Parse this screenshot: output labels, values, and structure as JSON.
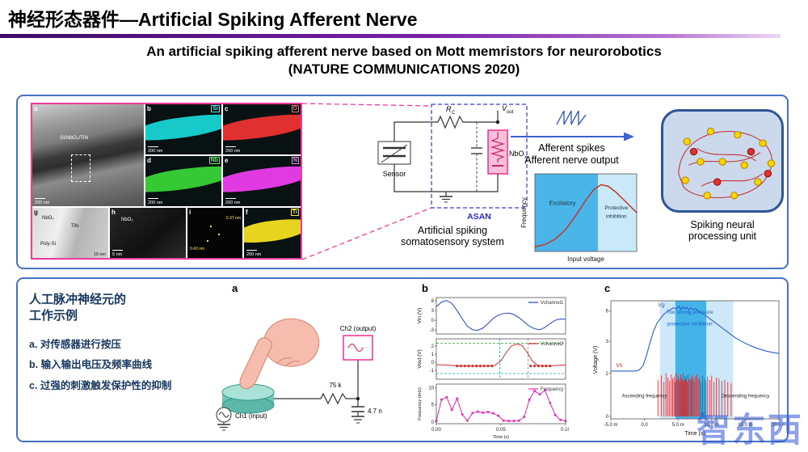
{
  "slide": {
    "title": "神经形态器件—Artificial Spiking Afferent Nerve",
    "subtitle_line1": "An artificial spiking afferent nerve based on Mott memristors for neurorobotics",
    "subtitle_line2": "(NATURE COMMUNICATIONS 2020)"
  },
  "top_panel": {
    "micrograph": {
      "a_letter": "a",
      "a_layer": "Si/NbO₂/TiN",
      "a_scale": "200 nm",
      "b_letter": "b",
      "b_el": "Si",
      "c_letter": "c",
      "c_el": "O",
      "d_letter": "d",
      "d_el": "Nb",
      "e_letter": "e",
      "e_el": "N",
      "f_letter": "f",
      "f_el": "Ti",
      "g_letter": "g",
      "g_l1": "NbO₂",
      "g_l2": "TiN",
      "g_l3": "Poly-Si",
      "g_scale": "10 nm",
      "h_letter": "h",
      "h_l1": "NbO₂",
      "h_scale": "5 nm",
      "i_letter": "i",
      "i_d1": "0.37 nm",
      "i_d2": "0.43 nm",
      "eds_scale": "200 nm",
      "elements": [
        {
          "symbol": "Si",
          "color": "#17c9c9"
        },
        {
          "symbol": "O",
          "color": "#e03030"
        },
        {
          "symbol": "Nb",
          "color": "#35c935"
        },
        {
          "symbol": "N",
          "color": "#e23ae2"
        },
        {
          "symbol": "Ti",
          "color": "#e6d41f"
        }
      ]
    },
    "circuit": {
      "sensor": "Sensor",
      "r": "R",
      "r_sub": "C",
      "v": "V",
      "v_sub": "out",
      "dev": "NbO",
      "dev_sub": "x",
      "asan": "ASAN",
      "caption": "Artificial spiking somatosensory system"
    },
    "afferent": {
      "line1": "Afferent spikes",
      "line2": "Afferent nerve output"
    },
    "snn_caption": "Spiking neural processing unit"
  },
  "bottom_panel": {
    "notes": {
      "heading_line1": "人工脉冲神经元的",
      "heading_line2": "工作示例",
      "items": [
        "a. 对传感器进行按压",
        "b. 输入输出电压及频率曲线",
        "c. 过强的刺激触发保护性的抑制"
      ]
    },
    "panel_a": {
      "label": "a",
      "ch2": "Ch2 (output)",
      "resistor": "75 k",
      "capacitor": "4.7 n",
      "ch1": "Ch1 (input)"
    },
    "panel_b_label": "b",
    "panel_c_label": "c"
  },
  "watermark": "智东西",
  "chart_data": [
    {
      "id": "freq-voltage",
      "type": "line",
      "xlabel": "Input voltage",
      "ylabel": "Frequency",
      "xlim": [
        0,
        1
      ],
      "ylim": [
        0,
        1
      ],
      "regions": [
        {
          "x0": 0,
          "x1": 0.62,
          "color": "#4ab5e8"
        },
        {
          "x0": 0.62,
          "x1": 1,
          "color": "#c9e9f8"
        }
      ],
      "annotations": [
        {
          "text": "Excitatory",
          "rx": 0.27,
          "ry": 0.4,
          "size": 7.5,
          "color": "#103040"
        },
        {
          "text": "Protective",
          "rx": 0.8,
          "ry": 0.46,
          "size": 6.5,
          "color": "#103040"
        },
        {
          "text": "inhibition",
          "rx": 0.8,
          "ry": 0.57,
          "size": 6.5,
          "color": "#103040"
        }
      ],
      "series": [
        {
          "name": "afferent-response",
          "color": "#c0392b",
          "width": 1.5,
          "x": [
            0,
            0.1,
            0.2,
            0.3,
            0.4,
            0.5,
            0.58,
            0.65,
            0.72,
            0.8,
            0.9,
            1
          ],
          "y": [
            0.06,
            0.09,
            0.16,
            0.28,
            0.46,
            0.66,
            0.8,
            0.86,
            0.84,
            0.76,
            0.63,
            0.5
          ]
        }
      ]
    },
    {
      "id": "b-vin",
      "type": "line",
      "ylabel": "Vin (V)",
      "xlim": [
        0,
        0.1
      ],
      "ylim": [
        -4.2,
        7
      ],
      "yticks": [
        [
          6,
          "6"
        ],
        [
          3,
          "3"
        ],
        [
          0,
          "0"
        ],
        [
          -3,
          "-3"
        ]
      ],
      "legend": [
        {
          "label": "Vchannel1",
          "color": "#2040cc"
        }
      ],
      "series": [
        {
          "name": "Vchannel1",
          "color": "#2040cc",
          "width": 1,
          "x": [
            0,
            0.004,
            0.008,
            0.012,
            0.016,
            0.02,
            0.024,
            0.028,
            0.032,
            0.036,
            0.04,
            0.044,
            0.048,
            0.052,
            0.056,
            0.06,
            0.064,
            0.068,
            0.072,
            0.076,
            0.08,
            0.084,
            0.088,
            0.092,
            0.096,
            0.1
          ],
          "y": [
            4.2,
            5.6,
            6.1,
            5.2,
            3,
            0.5,
            -1.8,
            -2.9,
            -3.1,
            -2.4,
            -1,
            0.6,
            1.6,
            2.1,
            2.2,
            1.8,
            0.8,
            -0.5,
            -1.8,
            -2.6,
            -2.9,
            -2.2,
            -1,
            0,
            0.4,
            0.3
          ]
        }
      ]
    },
    {
      "id": "b-vout",
      "type": "line",
      "ylabel": "Vout (V)",
      "xlim": [
        0,
        0.1
      ],
      "ylim": [
        -2.1,
        2.9
      ],
      "yticks": [
        [
          2,
          "2"
        ],
        [
          1,
          "1"
        ],
        [
          0,
          "0"
        ],
        [
          -1,
          "-1"
        ]
      ],
      "hlines": [
        {
          "y": 2.35,
          "color": "#2ca02c"
        },
        {
          "y": -1.4,
          "color": "#17a2b8"
        }
      ],
      "vlines": [
        {
          "x": 0.049,
          "color": "#17a2b8"
        },
        {
          "x": 0.071,
          "color": "#17a2b8"
        }
      ],
      "legend": [
        {
          "label": "Vchannel2",
          "color": "#d62f2f"
        }
      ],
      "series": [
        {
          "name": "Vchannel2",
          "color": "#d62f2f",
          "width": 1,
          "x": [
            0,
            0.005,
            0.01,
            0.015,
            0.02,
            0.025,
            0.03,
            0.035,
            0.04,
            0.045,
            0.05,
            0.054,
            0.058,
            0.062,
            0.066,
            0.07,
            0.074,
            0.078,
            0.082,
            0.086,
            0.09,
            0.095,
            0.1
          ],
          "y": [
            -0.3,
            -0.32,
            -0.36,
            -0.42,
            -0.46,
            -0.46,
            -0.46,
            -0.46,
            -0.44,
            -0.4,
            0.2,
            1.2,
            2,
            2.25,
            2.1,
            1.3,
            0.2,
            -0.35,
            -0.45,
            -0.46,
            -0.42,
            -0.36,
            -0.32
          ]
        },
        {
          "name": "spike-events",
          "type": "scatter",
          "color": "#d62f2f",
          "x": [
            0.016,
            0.019,
            0.022,
            0.025,
            0.028,
            0.031,
            0.034,
            0.037,
            0.04,
            0.043,
            0.073,
            0.076,
            0.079,
            0.082,
            0.085,
            0.088
          ],
          "y": [
            -0.46,
            -0.46,
            -0.46,
            -0.46,
            -0.46,
            -0.46,
            -0.46,
            -0.46,
            -0.46,
            -0.46,
            -0.46,
            -0.46,
            -0.46,
            -0.46,
            -0.46,
            -0.46
          ]
        }
      ]
    },
    {
      "id": "b-freq",
      "type": "line",
      "ylabel": "Frequency (kHz)",
      "xlabel": "Time (s)",
      "xlim": [
        0,
        0.1
      ],
      "ylim": [
        -0.5,
        11
      ],
      "yticks": [
        [
          10,
          "10"
        ],
        [
          5,
          "5"
        ],
        [
          0,
          "0"
        ]
      ],
      "xticks": [
        [
          0,
          "0.00"
        ],
        [
          0.05,
          "0.05"
        ],
        [
          0.1,
          "0.10"
        ]
      ],
      "legend": [
        {
          "label": "Frequency",
          "color": "#e628b4"
        }
      ],
      "series": [
        {
          "name": "Frequency",
          "color": "#e628b4",
          "width": 1,
          "marker": "square",
          "x": [
            0,
            0.004,
            0.008,
            0.012,
            0.016,
            0.02,
            0.024,
            0.028,
            0.032,
            0.036,
            0.04,
            0.044,
            0.048,
            0.052,
            0.056,
            0.06,
            0.064,
            0.068,
            0.072,
            0.076,
            0.08,
            0.084,
            0.088,
            0.092,
            0.096,
            0.1
          ],
          "y": [
            0.3,
            6.5,
            7.2,
            3.5,
            6.8,
            2.2,
            0.4,
            2.6,
            3,
            2.7,
            2.9,
            2.5,
            1.8,
            0.4,
            0.3,
            0.3,
            0.4,
            1.5,
            6.5,
            9,
            8,
            9.2,
            5.5,
            2,
            0.6,
            0.3
          ]
        }
      ]
    },
    {
      "id": "c-chart",
      "type": "line",
      "ylabel": "Voltage (V)",
      "xlabel": "Time (s)",
      "xlim": [
        -5,
        20
      ],
      "ylim": [
        0,
        7
      ],
      "xticks": [
        [
          -5,
          "-5.0 m"
        ],
        [
          0,
          "0.0"
        ],
        [
          5,
          "5.0 m"
        ],
        [
          10,
          "10.0 m"
        ],
        [
          15,
          "15.0 m"
        ],
        [
          20,
          "20.0 m"
        ]
      ],
      "yticks": [
        [
          6,
          "6",
          0
        ],
        [
          3,
          "3",
          0
        ],
        [
          2,
          "2",
          1
        ],
        [
          0,
          "0",
          1
        ]
      ],
      "regions": [
        {
          "x0": 2.3,
          "x1": 13.2,
          "color": "#cde8f8"
        },
        {
          "x0": 4.6,
          "x1": 9.2,
          "color": "#44b4e8"
        }
      ],
      "annotations": [
        {
          "text": "Vg",
          "rx": 0.3,
          "ry": 0.05,
          "color": "#2a5fd0",
          "italic": true,
          "size": 7
        },
        {
          "text": "Vs",
          "rx": 0.03,
          "ry": 0.56,
          "color": "#e02020",
          "italic": true,
          "size": 7,
          "anchor": "start"
        },
        {
          "text": "Too strong pressure",
          "rx": 0.47,
          "ry": 0.11,
          "color": "#1a5fc8",
          "size": 6.5
        },
        {
          "text": "protective inhibition",
          "rx": 0.47,
          "ry": 0.21,
          "color": "#1a5fc8",
          "size": 6.5
        },
        {
          "text": "Ascending frequency",
          "rx": 0.2,
          "ry": 0.82,
          "color": "#222",
          "size": 6
        },
        {
          "text": "Descending frequency",
          "rx": 0.8,
          "ry": 0.82,
          "color": "#222",
          "size": 6
        }
      ],
      "series": [
        {
          "name": "Vg",
          "color": "#2a5fd0",
          "width": 1.1,
          "ylim": [
            0,
            7
          ],
          "band": [
            0.4,
            1
          ],
          "x": [
            -5,
            -1.5,
            -0.8,
            -0.2,
            0.3,
            0.8,
            1.3,
            1.8,
            2.3,
            2.8,
            3.3,
            3.8,
            4.3,
            4.8,
            5.1,
            5.4,
            5.7,
            6,
            6.3,
            6.6,
            6.9,
            7.2,
            7.6,
            8,
            8.5,
            9,
            9.5,
            10,
            10.6,
            11.2,
            11.8,
            12.4,
            13,
            13.6,
            14.2,
            15,
            16,
            17,
            18,
            19,
            20
          ],
          "y": [
            0.05,
            0.05,
            0.15,
            0.6,
            1.6,
            2.8,
            3.9,
            4.7,
            5.2,
            5.6,
            5.9,
            6.1,
            6.3,
            6.2,
            6.45,
            6.15,
            6.4,
            6.2,
            6.35,
            6.1,
            6.3,
            6.15,
            6.2,
            6,
            5.8,
            5.6,
            5.35,
            5.1,
            4.8,
            4.5,
            4.2,
            3.9,
            3.6,
            3.3,
            3.1,
            2.8,
            2.5,
            2.25,
            2.05,
            1.9,
            1.8
          ]
        },
        {
          "name": "Vs",
          "type": "spikes",
          "color": "#e02020",
          "ylim": [
            0,
            2.3
          ],
          "band": [
            0.02,
            0.44
          ],
          "x": [
            2.0,
            2.5,
            2.9,
            3.2,
            3.5,
            3.75,
            4.0,
            4.2,
            4.4,
            4.55,
            4.7,
            4.85,
            5.0,
            5.12,
            5.25,
            5.38,
            5.5,
            5.62,
            5.75,
            5.88,
            6.0,
            6.12,
            6.25,
            6.38,
            6.5,
            6.65,
            6.8,
            6.95,
            7.1,
            7.25,
            7.4,
            7.6,
            7.8,
            8.0,
            8.2,
            8.4,
            8.65,
            8.9,
            9.15,
            9.4,
            9.7,
            10.0,
            10.35,
            10.7,
            11.1,
            11.5,
            11.95,
            12.4,
            12.9
          ],
          "y": [
            1.7,
            1.9,
            1.6,
            2.0,
            1.8,
            1.65,
            1.95,
            1.75,
            1.85,
            1.6,
            2.0,
            1.7,
            1.9,
            1.75,
            1.6,
            1.95,
            1.8,
            1.7,
            2.0,
            1.65,
            1.85,
            1.75,
            1.9,
            1.6,
            1.95,
            1.7,
            1.8,
            1.65,
            1.9,
            1.75,
            1.6,
            1.85,
            1.95,
            1.7,
            1.8,
            1.6,
            1.9,
            1.75,
            1.65,
            1.85,
            1.7,
            1.9,
            1.6,
            1.8,
            1.75,
            1.65,
            1.7,
            1.6,
            1.55
          ]
        }
      ]
    }
  ]
}
